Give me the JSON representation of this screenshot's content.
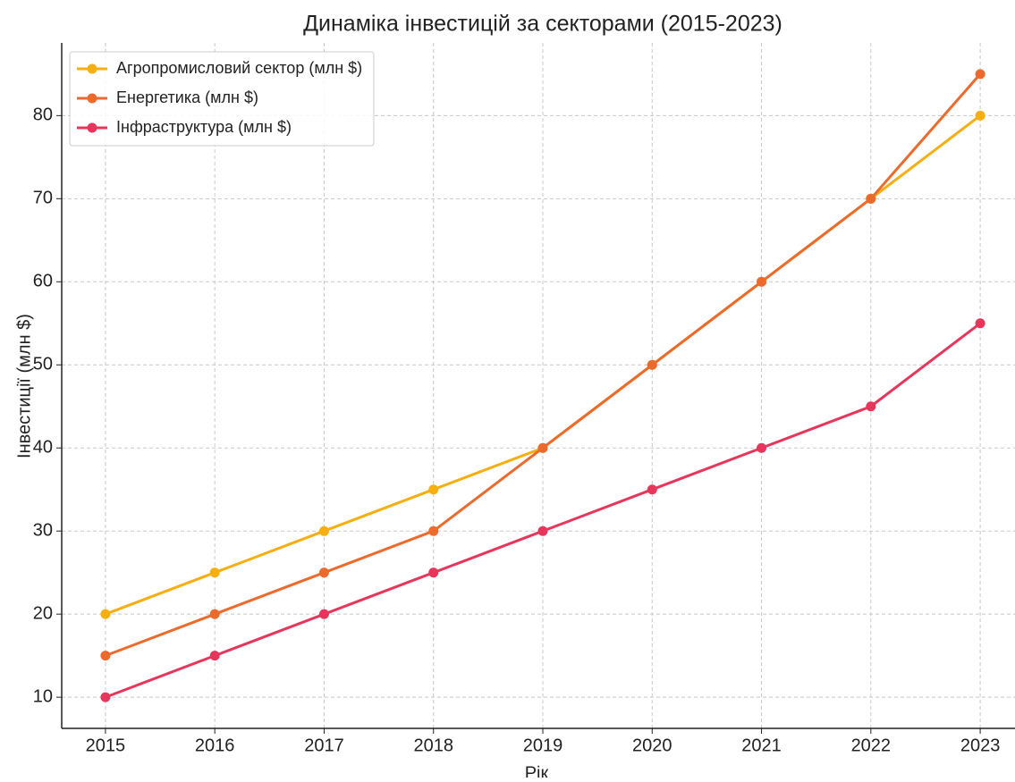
{
  "chart_data": {
    "type": "line",
    "title": "Динаміка інвестицій за секторами (2015-2023)",
    "x_label": "Рік",
    "y_label": "Інвестиції (млн $)",
    "x": [
      2015,
      2016,
      2017,
      2018,
      2019,
      2020,
      2021,
      2022,
      2023
    ],
    "series": [
      {
        "name": "Агропромисловий сектор (млн $)",
        "color": "#f7ae0f",
        "values": [
          20,
          25,
          30,
          35,
          40,
          50,
          60,
          70,
          80
        ]
      },
      {
        "name": "Енергетика (млн $)",
        "color": "#ec6a2c",
        "values": [
          15,
          20,
          25,
          30,
          40,
          50,
          60,
          70,
          85
        ]
      },
      {
        "name": "Інфраструктура (млн $)",
        "color": "#e7365b",
        "values": [
          10,
          15,
          20,
          25,
          30,
          35,
          40,
          45,
          55
        ]
      }
    ],
    "xlim": [
      2014.6,
      2023.4
    ],
    "xticks": [
      2015,
      2016,
      2017,
      2018,
      2019,
      2020,
      2021,
      2022,
      2023
    ],
    "ylim": [
      6.25,
      88.75
    ],
    "yticks": [
      10,
      20,
      30,
      40,
      50,
      60,
      70,
      80
    ],
    "grid": true,
    "legend": "upper left"
  }
}
